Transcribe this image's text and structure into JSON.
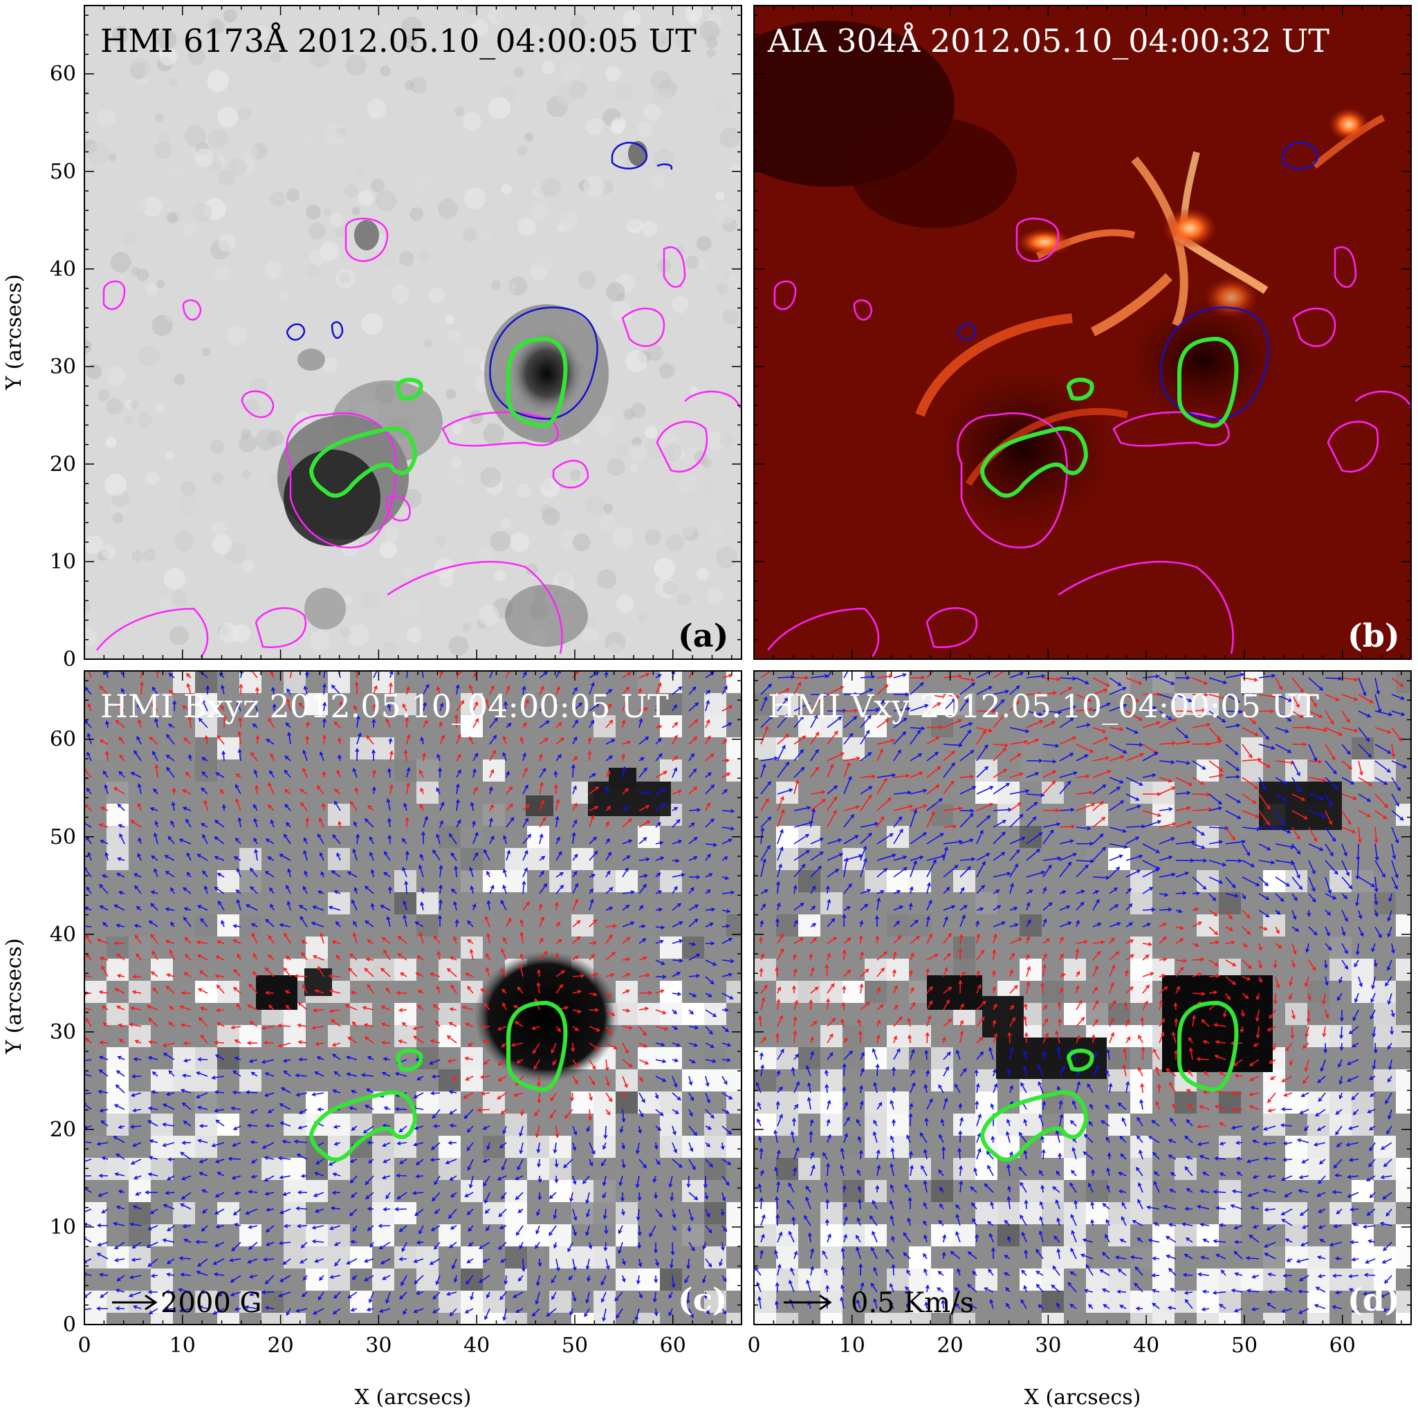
{
  "panels": [
    {
      "id": "a",
      "title": "HMI 6173Å 2012.05.10_04:00:05 UT",
      "letter": "(a)",
      "title_color": "#000000",
      "letter_color": "#000000",
      "background": "#d9d9d9"
    },
    {
      "id": "b",
      "title": "AIA 304Å 2012.05.10_04:00:32 UT",
      "letter": "(b)",
      "title_color": "#ffffff",
      "letter_color": "#ffffff",
      "background": "#6e0a02"
    },
    {
      "id": "c",
      "title": "HMI Bxyz 2012.05.10_04:00:05 UT",
      "letter": "(c)",
      "title_color": "#ffffff",
      "letter_color": "#ffffff",
      "background": "#8c8c8c"
    },
    {
      "id": "d",
      "title": "HMI Vxy 2012.05.10_04:00:05 UT",
      "letter": "(d)",
      "title_color": "#ffffff",
      "letter_color": "#ffffff",
      "background": "#8c8c8c"
    }
  ],
  "scale_labels": {
    "c": "2000 G",
    "d": "0.5 Km/s"
  },
  "axes": {
    "xlabel": "X (arcsecs)",
    "ylabel": "Y (arcsecs)",
    "x_range": [
      0,
      67
    ],
    "y_range": [
      0,
      67
    ],
    "x_ticks": [
      "0",
      "10",
      "20",
      "30",
      "40",
      "50",
      "60"
    ],
    "y_ticks": [
      "0",
      "10",
      "20",
      "30",
      "40",
      "50",
      "60"
    ]
  },
  "colors": {
    "contour_positive": "#ff22ff",
    "contour_negative": "#1010d0",
    "contour_green": "#33e633",
    "arrow_positive": "#ff1a1a",
    "arrow_negative": "#1010ee"
  }
}
